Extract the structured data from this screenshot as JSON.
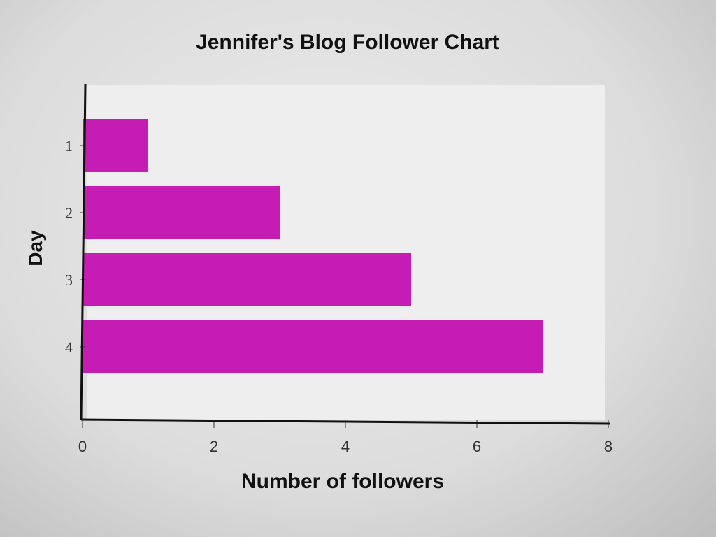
{
  "chart_data": {
    "type": "bar",
    "orientation": "horizontal",
    "title": "Jennifer's Blog Follower Chart",
    "xlabel": "Number of followers",
    "ylabel": "Day",
    "categories": [
      "1",
      "2",
      "3",
      "4"
    ],
    "values": [
      1,
      3,
      5,
      7
    ],
    "xlim": [
      0,
      8
    ],
    "xticks": [
      "0",
      "2",
      "4",
      "6",
      "8"
    ],
    "grid": false,
    "bar_color": "#c51cb4"
  }
}
